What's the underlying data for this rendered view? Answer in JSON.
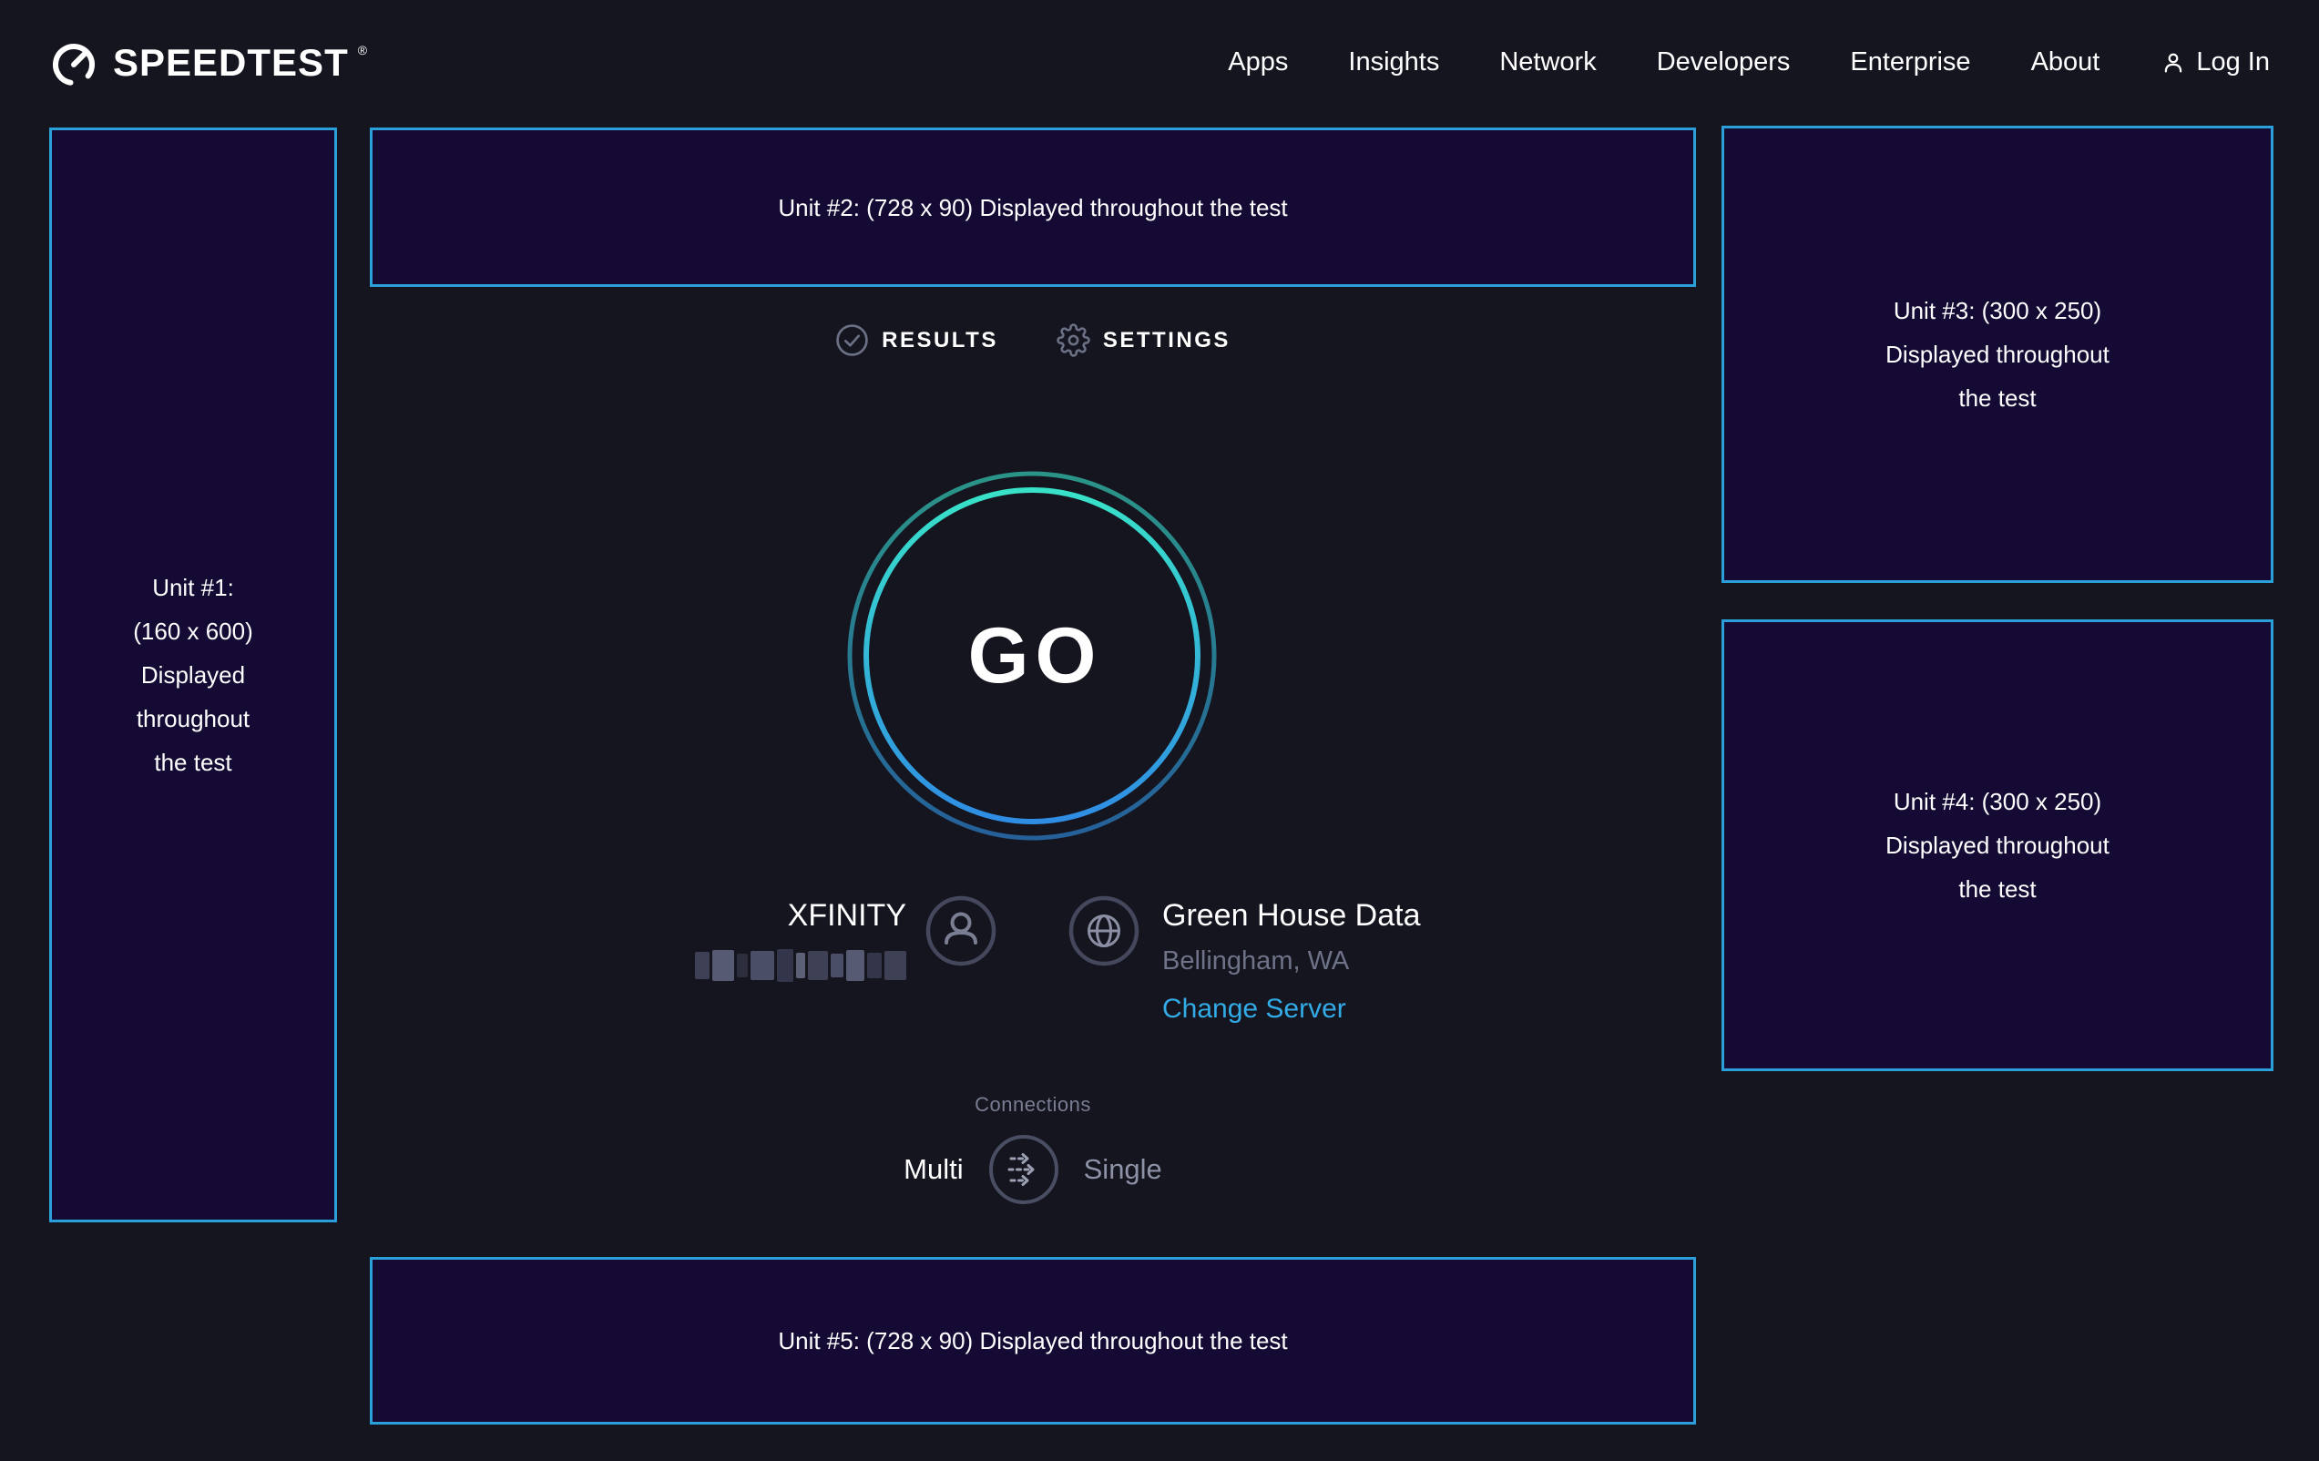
{
  "nav": {
    "logo_text": "SPEEDTEST",
    "logo_mark": "®",
    "items": [
      "Apps",
      "Insights",
      "Network",
      "Developers",
      "Enterprise",
      "About"
    ],
    "login_label": "Log In"
  },
  "tabs": {
    "results": "RESULTS",
    "settings": "SETTINGS"
  },
  "go": {
    "label": "GO"
  },
  "isp": {
    "name": "XFINITY"
  },
  "server": {
    "name": "Green House Data",
    "location": "Bellingham, WA",
    "change_link": "Change Server"
  },
  "connections": {
    "label": "Connections",
    "multi": "Multi",
    "single": "Single"
  },
  "ads": [
    {
      "label": "Unit #1:\n(160 x 600)\nDisplayed\nthroughout\nthe test"
    },
    {
      "label": "Unit #2: (728 x 90) Displayed throughout the test"
    },
    {
      "label": "Unit #3: (300 x 250)\nDisplayed throughout\nthe test"
    },
    {
      "label": "Unit #4: (300 x 250)\nDisplayed throughout\nthe test"
    },
    {
      "label": "Unit #5: (728 x 90) Displayed throughout the test"
    }
  ],
  "colors": {
    "page_bg": "#14151f",
    "ad_bg": "#140a33",
    "ad_border": "#2b9fd9",
    "link_blue": "#32abe6",
    "go_ring_teal": "#38e2c8",
    "go_ring_blue": "#2f8de4",
    "muted_gray": "#6e7388",
    "icon_gray": "#45485c"
  },
  "censored": {
    "blocks": [
      {
        "w": 16,
        "h": 30,
        "c": "#3e4156"
      },
      {
        "w": 24,
        "h": 34,
        "c": "#565a73"
      },
      {
        "w": 12,
        "h": 26,
        "c": "#2c2e3d"
      },
      {
        "w": 26,
        "h": 32,
        "c": "#4a4e66"
      },
      {
        "w": 18,
        "h": 36,
        "c": "#33364a"
      },
      {
        "w": 10,
        "h": 28,
        "c": "#5d6178"
      },
      {
        "w": 22,
        "h": 32,
        "c": "#3e4156"
      },
      {
        "w": 14,
        "h": 26,
        "c": "#4a4e66"
      },
      {
        "w": 20,
        "h": 34,
        "c": "#565a73"
      },
      {
        "w": 16,
        "h": 28,
        "c": "#33364a"
      },
      {
        "w": 24,
        "h": 32,
        "c": "#3e4156"
      }
    ]
  }
}
